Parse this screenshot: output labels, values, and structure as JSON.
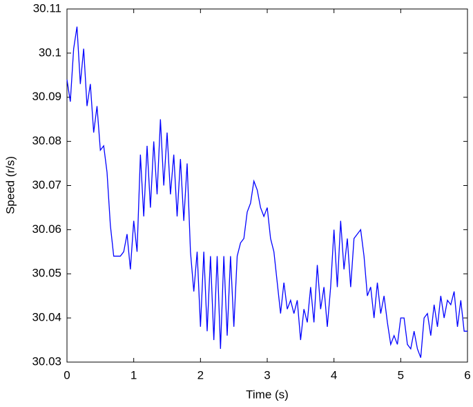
{
  "chart_data": {
    "type": "line",
    "x": [
      0,
      0.05,
      0.1,
      0.15,
      0.2,
      0.25,
      0.3,
      0.35,
      0.4,
      0.45,
      0.5,
      0.55,
      0.6,
      0.65,
      0.7,
      0.75,
      0.8,
      0.85,
      0.9,
      0.95,
      1,
      1.05,
      1.1,
      1.15,
      1.2,
      1.25,
      1.3,
      1.35,
      1.4,
      1.45,
      1.5,
      1.55,
      1.6,
      1.65,
      1.7,
      1.75,
      1.8,
      1.85,
      1.9,
      1.95,
      2,
      2.05,
      2.1,
      2.15,
      2.2,
      2.25,
      2.3,
      2.35,
      2.4,
      2.45,
      2.5,
      2.55,
      2.6,
      2.65,
      2.7,
      2.75,
      2.8,
      2.85,
      2.9,
      2.95,
      3,
      3.05,
      3.1,
      3.15,
      3.2,
      3.25,
      3.3,
      3.35,
      3.4,
      3.45,
      3.5,
      3.55,
      3.6,
      3.65,
      3.7,
      3.75,
      3.8,
      3.85,
      3.9,
      3.95,
      4,
      4.05,
      4.1,
      4.15,
      4.2,
      4.25,
      4.3,
      4.35,
      4.4,
      4.45,
      4.5,
      4.55,
      4.6,
      4.65,
      4.7,
      4.75,
      4.8,
      4.85,
      4.9,
      4.95,
      5,
      5.05,
      5.1,
      5.15,
      5.2,
      5.25,
      5.3,
      5.35,
      5.4,
      5.45,
      5.5,
      5.55,
      5.6,
      5.65,
      5.7,
      5.75,
      5.8,
      5.85,
      5.9,
      5.95,
      6
    ],
    "values": [
      30.094,
      30.089,
      30.101,
      30.106,
      30.093,
      30.101,
      30.088,
      30.093,
      30.082,
      30.088,
      30.078,
      30.079,
      30.073,
      30.061,
      30.054,
      30.054,
      30.054,
      30.055,
      30.059,
      30.051,
      30.062,
      30.055,
      30.077,
      30.063,
      30.079,
      30.065,
      30.08,
      30.068,
      30.085,
      30.07,
      30.082,
      30.068,
      30.077,
      30.063,
      30.076,
      30.062,
      30.075,
      30.055,
      30.046,
      30.055,
      30.038,
      30.055,
      30.037,
      30.054,
      30.035,
      30.054,
      30.033,
      30.054,
      30.036,
      30.054,
      30.038,
      30.054,
      30.057,
      30.058,
      30.064,
      30.066,
      30.071,
      30.069,
      30.065,
      30.063,
      30.065,
      30.058,
      30.055,
      30.048,
      30.041,
      30.048,
      30.042,
      30.044,
      30.041,
      30.044,
      30.035,
      30.042,
      30.039,
      30.047,
      30.039,
      30.052,
      30.042,
      30.047,
      30.038,
      30.047,
      30.06,
      30.047,
      30.062,
      30.051,
      30.058,
      30.047,
      30.058,
      30.059,
      30.06,
      30.054,
      30.045,
      30.047,
      30.04,
      30.048,
      30.041,
      30.045,
      30.039,
      30.034,
      30.036,
      30.034,
      30.04,
      30.04,
      30.034,
      30.033,
      30.037,
      30.033,
      30.031,
      30.04,
      30.041,
      30.036,
      30.043,
      30.038,
      30.045,
      30.04,
      30.044,
      30.043,
      30.046,
      30.038,
      30.044,
      30.037,
      30.037
    ],
    "color": "#0000ff",
    "x_label": "Time (s)",
    "y_label": "Speed (r/s)",
    "xlim": [
      0,
      6
    ],
    "xticks": [
      0,
      1,
      2,
      3,
      4,
      5,
      6
    ],
    "ylim": [
      30.03,
      30.11
    ],
    "yticks": [
      30.03,
      30.04,
      30.05,
      30.06,
      30.07,
      30.08,
      30.09,
      30.1,
      30.11
    ],
    "grid": false
  }
}
